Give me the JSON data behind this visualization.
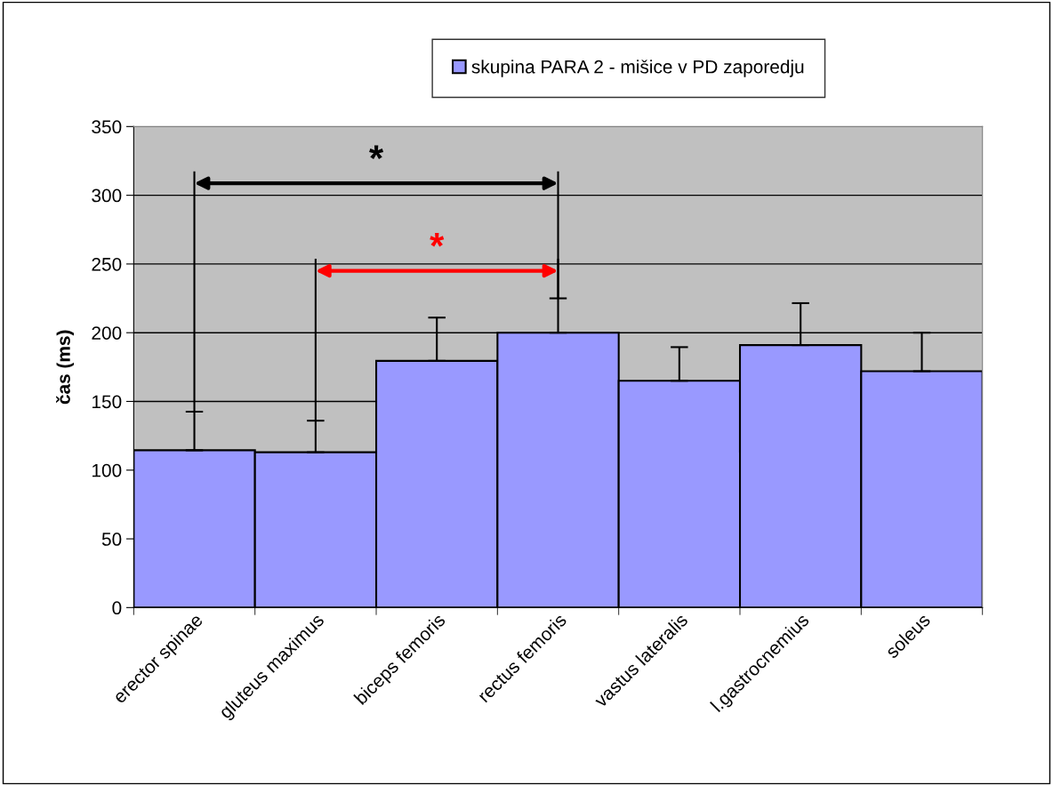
{
  "chart_data": {
    "type": "bar",
    "ylabel": "čas (ms)",
    "categories": [
      "erector spinae",
      "gluteus maximus",
      "biceps femoris",
      "rectus femoris",
      "vastus lateralis",
      "l.gastrocnemius",
      "soleus"
    ],
    "series": [
      {
        "name": "skupina PARA 2 - mišice v PD zaporedju",
        "color": "#9999ff",
        "values": [
          114.5,
          113,
          179.5,
          200,
          165,
          191,
          172
        ],
        "errors": [
          [
            114.5,
            142.5
          ],
          [
            113,
            136
          ],
          [
            179.5,
            211
          ],
          [
            200,
            225
          ],
          [
            165,
            189.5
          ],
          [
            191,
            221.5
          ],
          [
            172,
            200
          ]
        ]
      }
    ],
    "ylim": [
      0,
      350
    ],
    "yticks": [
      0,
      50,
      100,
      150,
      200,
      250,
      300,
      350
    ],
    "grid": "y",
    "legend": "top",
    "annotations": [
      "*",
      "*"
    ]
  }
}
